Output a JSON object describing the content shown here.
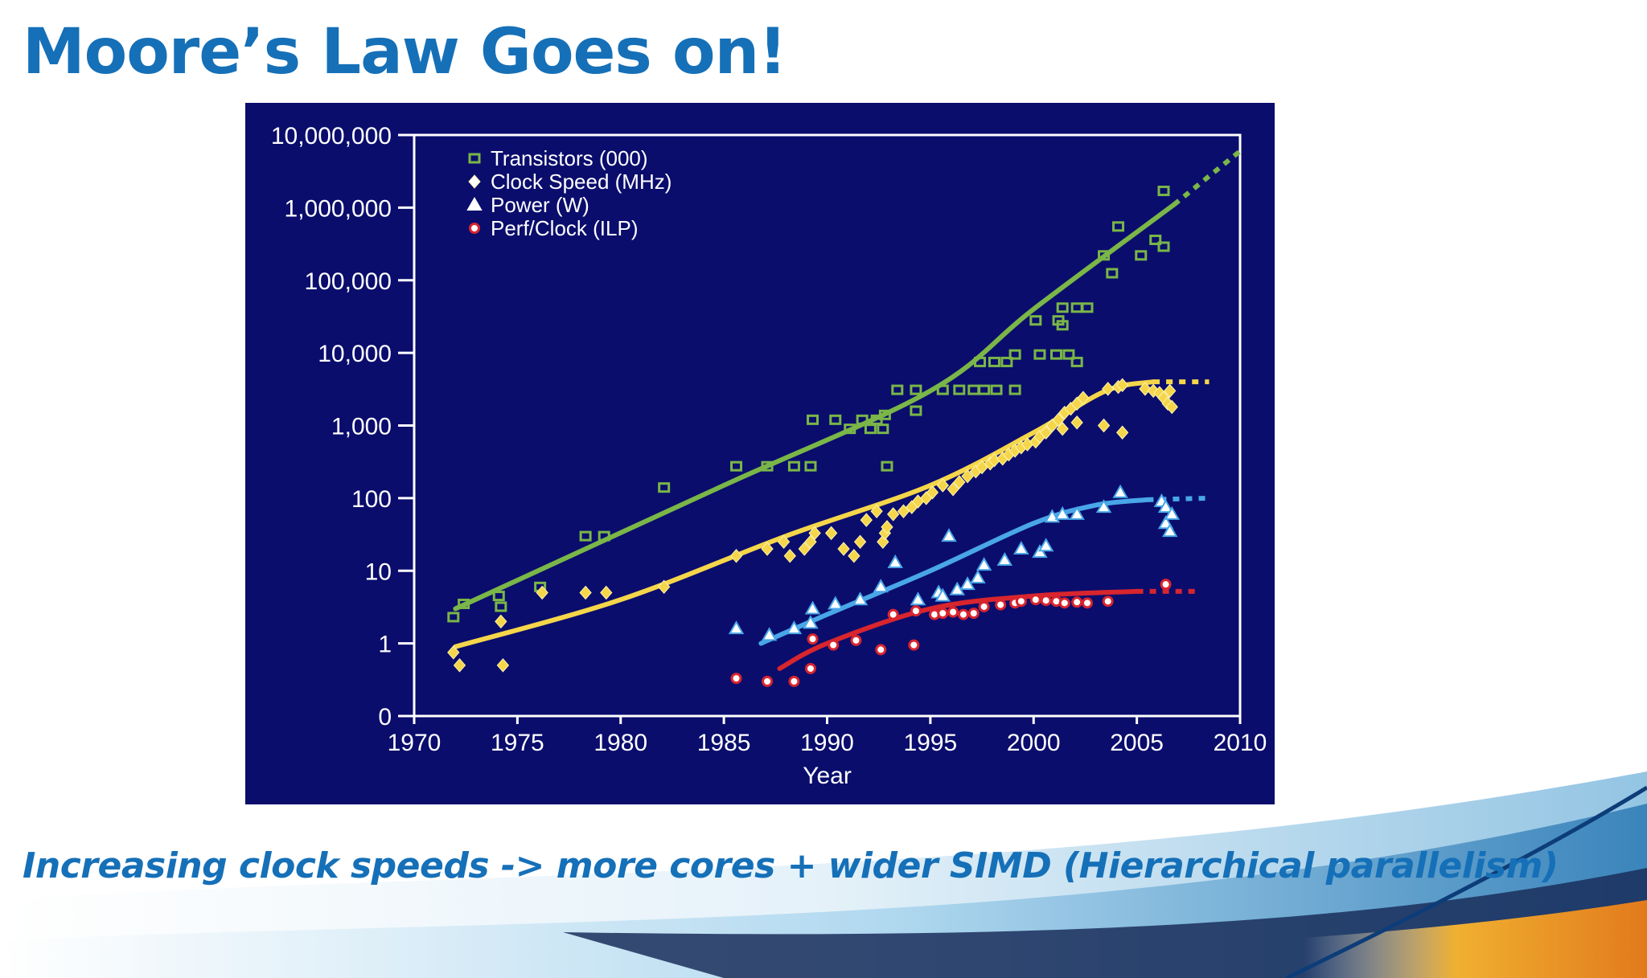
{
  "slide": {
    "title": "Moore’s Law Goes on!",
    "caption": "Increasing clock speeds ->  more cores + wider SIMD (Hierarchical parallelism)"
  },
  "colors": {
    "title": "#1570b8",
    "panel_bg": "#0a0d6c",
    "transistors": "#7ab648",
    "clock": "#f5d64a",
    "power": "#49a6e8",
    "perf": "#d8252e"
  },
  "chart_data": {
    "type": "scatter",
    "title": "",
    "xlabel": "Year",
    "ylabel": "",
    "xlim": [
      1970,
      2010
    ],
    "yscale": "log",
    "x_ticks": [
      "1970",
      "1975",
      "1980",
      "1985",
      "1990",
      "1995",
      "2000",
      "2005",
      "2010"
    ],
    "y_ticks": [
      {
        "value": 0.1,
        "label": "0"
      },
      {
        "value": 1,
        "label": "1"
      },
      {
        "value": 10,
        "label": "10"
      },
      {
        "value": 100,
        "label": "100"
      },
      {
        "value": 1000,
        "label": "1,000"
      },
      {
        "value": 10000,
        "label": "10,000"
      },
      {
        "value": 100000,
        "label": "100,000"
      },
      {
        "value": 1000000,
        "label": "1,000,000"
      },
      {
        "value": 10000000,
        "label": "10,000,000"
      }
    ],
    "legend_position": "top-left",
    "series": [
      {
        "name": "Transistors (000)",
        "marker": "square",
        "points": [
          [
            1971.9,
            2.3
          ],
          [
            1972.4,
            3.5
          ],
          [
            1974.1,
            4.5
          ],
          [
            1974.2,
            3.2
          ],
          [
            1976.1,
            6
          ],
          [
            1978.3,
            30
          ],
          [
            1979.2,
            30
          ],
          [
            1982.1,
            140
          ],
          [
            1985.6,
            275
          ],
          [
            1987.1,
            275
          ],
          [
            1988.4,
            275
          ],
          [
            1989.2,
            275
          ],
          [
            1989.3,
            1200
          ],
          [
            1990.4,
            1200
          ],
          [
            1991.1,
            900
          ],
          [
            1991.7,
            1200
          ],
          [
            1992.1,
            900
          ],
          [
            1992.4,
            1200
          ],
          [
            1992.7,
            900
          ],
          [
            1992.8,
            1400
          ],
          [
            1992.9,
            275
          ],
          [
            1993.4,
            3100
          ],
          [
            1994.3,
            3100
          ],
          [
            1994.3,
            1600
          ],
          [
            1995.6,
            3100
          ],
          [
            1996.4,
            3100
          ],
          [
            1997.1,
            3100
          ],
          [
            1997.6,
            3100
          ],
          [
            1998.2,
            3100
          ],
          [
            1999.1,
            3100
          ],
          [
            1997.4,
            7500
          ],
          [
            1998.1,
            7500
          ],
          [
            1998.7,
            7500
          ],
          [
            1999.1,
            9500
          ],
          [
            2000.3,
            9500
          ],
          [
            2001.1,
            9500
          ],
          [
            2001.7,
            9500
          ],
          [
            2002.1,
            7500
          ],
          [
            2000.1,
            28000
          ],
          [
            2001.2,
            28000
          ],
          [
            2001.4,
            42000
          ],
          [
            2002.1,
            42000
          ],
          [
            2002.6,
            42000
          ],
          [
            2001.4,
            24000
          ],
          [
            2003.4,
            220000
          ],
          [
            2003.8,
            125000
          ],
          [
            2004.1,
            550000
          ],
          [
            2005.2,
            220000
          ],
          [
            2005.9,
            360000
          ],
          [
            2006.3,
            290000
          ],
          [
            2006.3,
            1700000
          ]
        ]
      },
      {
        "name": "Clock Speed (MHz)",
        "marker": "diamond",
        "points": [
          [
            1971.9,
            0.75
          ],
          [
            1972.2,
            0.5
          ],
          [
            1974.2,
            2
          ],
          [
            1974.3,
            0.5
          ],
          [
            1976.2,
            5
          ],
          [
            1978.3,
            5
          ],
          [
            1979.3,
            5
          ],
          [
            1982.1,
            6
          ],
          [
            1985.6,
            16
          ],
          [
            1987.1,
            20
          ],
          [
            1987.9,
            25
          ],
          [
            1988.2,
            16
          ],
          [
            1988.9,
            20
          ],
          [
            1989.2,
            25
          ],
          [
            1989.4,
            33
          ],
          [
            1990.2,
            33
          ],
          [
            1990.8,
            20
          ],
          [
            1991.3,
            16
          ],
          [
            1991.6,
            25
          ],
          [
            1991.9,
            50
          ],
          [
            1992.4,
            66
          ],
          [
            1992.7,
            25
          ],
          [
            1992.8,
            33
          ],
          [
            1992.9,
            40
          ],
          [
            1993.2,
            60
          ],
          [
            1993.7,
            66
          ],
          [
            1994.1,
            75
          ],
          [
            1994.4,
            90
          ],
          [
            1994.8,
            100
          ],
          [
            1995.1,
            120
          ],
          [
            1995.6,
            150
          ],
          [
            1996.1,
            133
          ],
          [
            1996.4,
            166
          ],
          [
            1996.8,
            200
          ],
          [
            1997.2,
            233
          ],
          [
            1997.5,
            266
          ],
          [
            1997.9,
            300
          ],
          [
            1998.1,
            333
          ],
          [
            1998.5,
            350
          ],
          [
            1998.8,
            400
          ],
          [
            1999.1,
            450
          ],
          [
            1999.4,
            500
          ],
          [
            1999.7,
            550
          ],
          [
            2000.1,
            600
          ],
          [
            2000.3,
            700
          ],
          [
            2000.6,
            800
          ],
          [
            2000.9,
            1000
          ],
          [
            2001.2,
            1200
          ],
          [
            2001.5,
            1500
          ],
          [
            2001.8,
            1700
          ],
          [
            2002.1,
            2000
          ],
          [
            2002.4,
            2400
          ],
          [
            2001.4,
            900
          ],
          [
            2002.1,
            1100
          ],
          [
            2003.4,
            1000
          ],
          [
            2003.6,
            3200
          ],
          [
            2004.1,
            3400
          ],
          [
            2004.3,
            3600
          ],
          [
            2004.3,
            800
          ],
          [
            2005.4,
            3200
          ],
          [
            2005.8,
            3000
          ],
          [
            2006.1,
            2800
          ],
          [
            2006.3,
            2400
          ],
          [
            2006.5,
            2000
          ],
          [
            2006.7,
            1800
          ],
          [
            2006.6,
            3000
          ]
        ]
      },
      {
        "name": "Power (W)",
        "marker": "triangle",
        "points": [
          [
            1985.6,
            1.6
          ],
          [
            1987.2,
            1.3
          ],
          [
            1988.4,
            1.6
          ],
          [
            1989.2,
            1.9
          ],
          [
            1989.3,
            3
          ],
          [
            1990.4,
            3.5
          ],
          [
            1991.6,
            4
          ],
          [
            1992.6,
            6
          ],
          [
            1993.3,
            13
          ],
          [
            1994.4,
            4
          ],
          [
            1995.4,
            5
          ],
          [
            1995.6,
            4.5
          ],
          [
            1995.9,
            30
          ],
          [
            1996.3,
            5.5
          ],
          [
            1996.8,
            6.5
          ],
          [
            1997.3,
            8
          ],
          [
            1997.6,
            12
          ],
          [
            1998.6,
            14
          ],
          [
            1999.4,
            20
          ],
          [
            2000.3,
            18
          ],
          [
            2000.6,
            22
          ],
          [
            2000.9,
            55
          ],
          [
            2001.4,
            60
          ],
          [
            2002.1,
            60
          ],
          [
            2003.4,
            75
          ],
          [
            2004.2,
            120
          ],
          [
            2006.2,
            90
          ],
          [
            2006.4,
            75
          ],
          [
            2006.4,
            45
          ],
          [
            2006.6,
            35
          ],
          [
            2006.7,
            60
          ]
        ]
      },
      {
        "name": "Perf/Clock (ILP)",
        "marker": "circle",
        "points": [
          [
            1985.6,
            0.33
          ],
          [
            1987.1,
            0.3
          ],
          [
            1988.4,
            0.3
          ],
          [
            1989.2,
            0.45
          ],
          [
            1989.3,
            1.15
          ],
          [
            1990.3,
            0.95
          ],
          [
            1991.4,
            1.1
          ],
          [
            1992.6,
            0.82
          ],
          [
            1993.2,
            2.5
          ],
          [
            1994.2,
            0.95
          ],
          [
            1994.3,
            2.8
          ],
          [
            1995.2,
            2.5
          ],
          [
            1995.6,
            2.6
          ],
          [
            1996.1,
            2.7
          ],
          [
            1996.6,
            2.5
          ],
          [
            1997.1,
            2.6
          ],
          [
            1997.6,
            3.2
          ],
          [
            1998.4,
            3.4
          ],
          [
            1999.1,
            3.6
          ],
          [
            1999.4,
            3.8
          ],
          [
            2000.1,
            4
          ],
          [
            2000.6,
            3.9
          ],
          [
            2001.1,
            3.8
          ],
          [
            2001.5,
            3.6
          ],
          [
            2002.1,
            3.7
          ],
          [
            2002.6,
            3.6
          ],
          [
            2003.6,
            3.8
          ],
          [
            2006.4,
            6.5
          ]
        ]
      }
    ],
    "trend_lines": [
      {
        "series": "Transistors (000)",
        "fit": [
          [
            1972,
            3
          ],
          [
            1985,
            150
          ],
          [
            1995,
            3000
          ],
          [
            2000,
            40000
          ],
          [
            2006.8,
            1100000
          ]
        ],
        "extrapolated": [
          [
            2006.8,
            1100000
          ],
          [
            2010,
            6000000
          ]
        ]
      },
      {
        "series": "Clock Speed (MHz)",
        "fit": [
          [
            1972,
            0.9
          ],
          [
            1980,
            4
          ],
          [
            1988,
            30
          ],
          [
            1995,
            150
          ],
          [
            2000,
            800
          ],
          [
            2003.5,
            3000
          ],
          [
            2005.8,
            4000
          ]
        ],
        "extrapolated": [
          [
            2005.8,
            4000
          ],
          [
            2008.5,
            4000
          ]
        ]
      },
      {
        "series": "Power (W)",
        "fit": [
          [
            1986.8,
            1
          ],
          [
            1990,
            2.5
          ],
          [
            1995,
            10
          ],
          [
            2000,
            45
          ],
          [
            2003,
            80
          ],
          [
            2005.5,
            95
          ]
        ],
        "extrapolated": [
          [
            2005.5,
            95
          ],
          [
            2008.5,
            100
          ]
        ]
      },
      {
        "series": "Perf/Clock (ILP)",
        "fit": [
          [
            1987.7,
            0.45
          ],
          [
            1990,
            1
          ],
          [
            1995,
            3
          ],
          [
            2000,
            4.5
          ],
          [
            2005,
            5.2
          ]
        ],
        "extrapolated": [
          [
            2005,
            5.2
          ],
          [
            2008,
            5.2
          ]
        ]
      }
    ]
  }
}
